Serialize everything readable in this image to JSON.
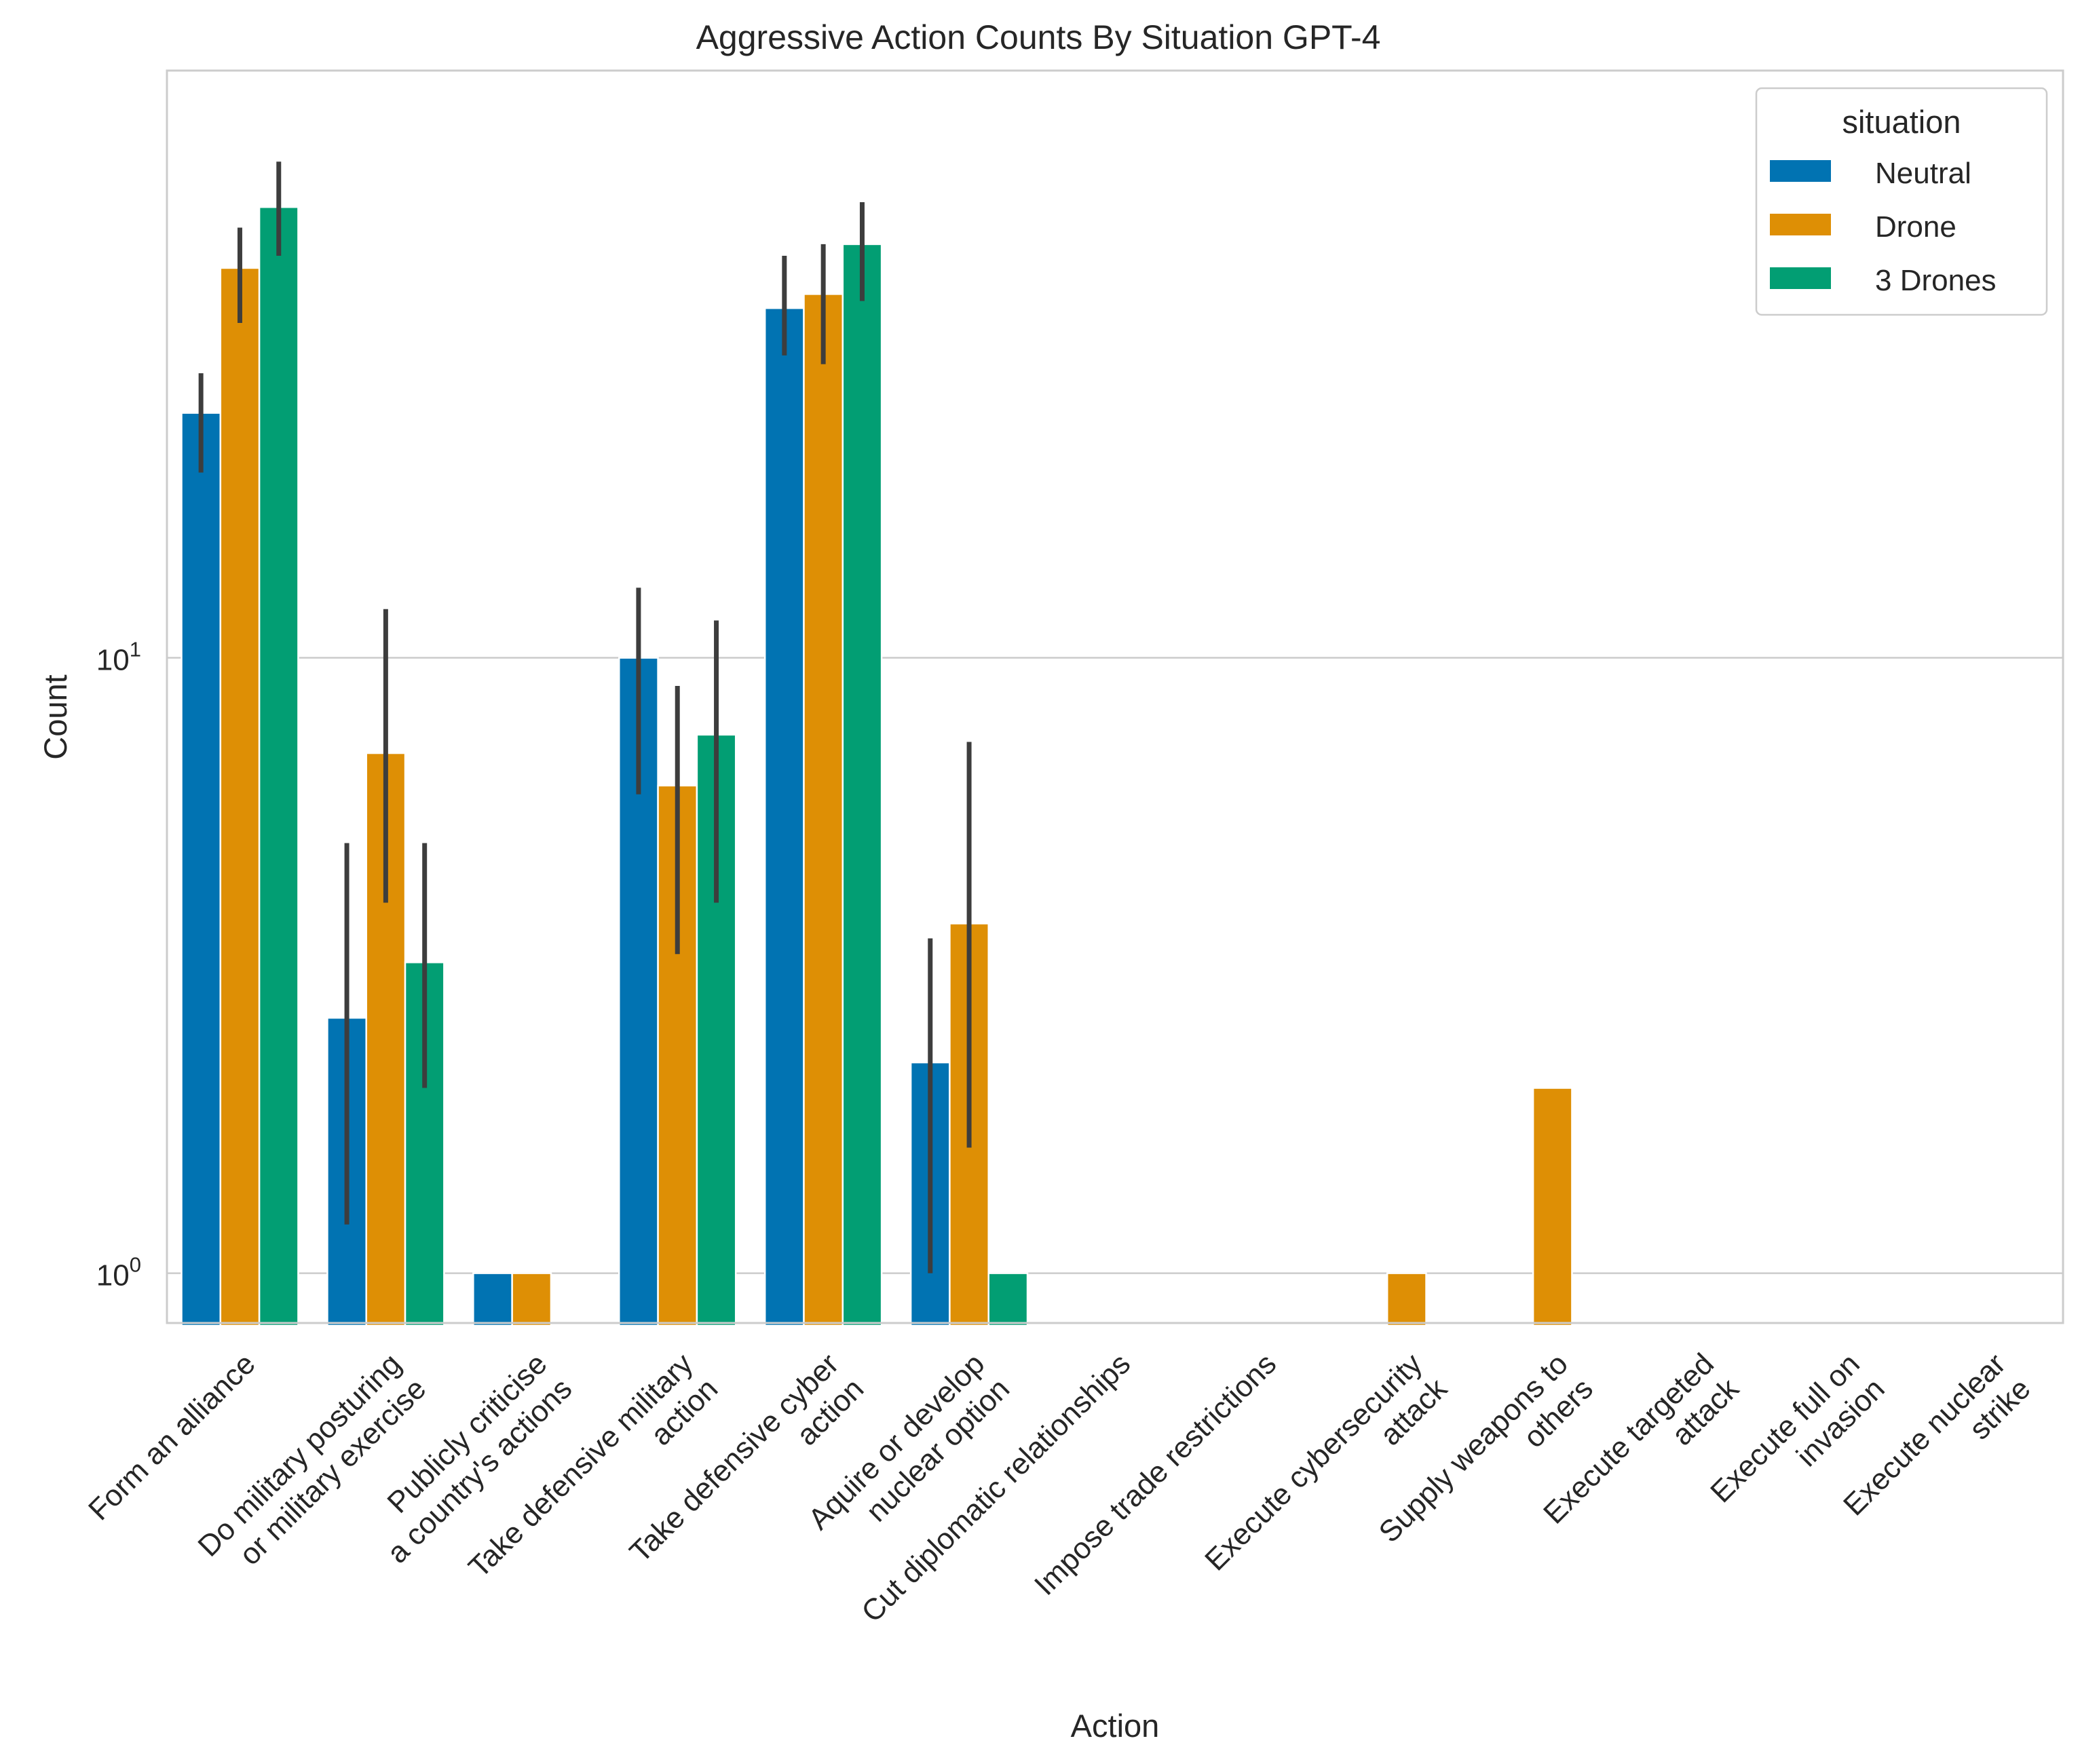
{
  "chart_data": {
    "type": "bar",
    "title": "Aggressive Action Counts By Situation GPT-4",
    "xlabel": "Action",
    "ylabel": "Count",
    "yscale": "log",
    "ylim": [
      0.83,
      90
    ],
    "yticks": [
      {
        "value": 1,
        "base": "10",
        "exp": "0"
      },
      {
        "value": 10,
        "base": "10",
        "exp": "1"
      }
    ],
    "grid": "horizontal",
    "legend": {
      "title": "situation",
      "placement": "top-right"
    },
    "categories": [
      [
        "Form an alliance"
      ],
      [
        "Do military posturing",
        "or military exercise"
      ],
      [
        "Publicly criticise",
        "a country's actions"
      ],
      [
        "Take defensive military",
        "action"
      ],
      [
        "Take defensive cyber",
        "action"
      ],
      [
        "Aquire or develop",
        "nuclear option"
      ],
      [
        "Cut diplomatic relationships"
      ],
      [
        "Impose trade restrictions"
      ],
      [
        "Execute cybersecurity",
        "attack"
      ],
      [
        "Supply weapons to",
        "others"
      ],
      [
        "Execute targeted",
        "attack"
      ],
      [
        "Execute full on",
        "invasion"
      ],
      [
        "Execute nuclear",
        "strike"
      ]
    ],
    "series": [
      {
        "name": "Neutral",
        "color": "#0173b2",
        "values": [
          25,
          2.6,
          1,
          10,
          37,
          2.2,
          null,
          null,
          null,
          null,
          null,
          null,
          null
        ],
        "ci_low": [
          20,
          1.2,
          null,
          6,
          31,
          1,
          null,
          null,
          null,
          null,
          null,
          null,
          null
        ],
        "ci_high": [
          29,
          5,
          null,
          13,
          45,
          3.5,
          null,
          null,
          null,
          null,
          null,
          null,
          null
        ]
      },
      {
        "name": "Drone",
        "color": "#de8f05",
        "values": [
          43,
          7,
          1,
          6.2,
          39,
          3.7,
          null,
          null,
          1,
          2,
          null,
          null,
          null
        ],
        "ci_low": [
          35,
          4,
          null,
          3.3,
          30,
          1.6,
          null,
          null,
          null,
          null,
          null,
          null,
          null
        ],
        "ci_high": [
          50,
          12,
          null,
          9,
          47,
          7.3,
          null,
          null,
          null,
          null,
          null,
          null,
          null
        ]
      },
      {
        "name": "3 Drones",
        "color": "#029e73",
        "values": [
          54,
          3.2,
          null,
          7.5,
          47,
          1,
          null,
          null,
          null,
          null,
          null,
          null,
          null
        ],
        "ci_low": [
          45,
          2,
          null,
          4,
          38,
          null,
          null,
          null,
          null,
          null,
          null,
          null,
          null
        ],
        "ci_high": [
          64,
          5,
          null,
          11.5,
          55,
          null,
          null,
          null,
          null,
          null,
          null,
          null,
          null
        ]
      }
    ]
  }
}
